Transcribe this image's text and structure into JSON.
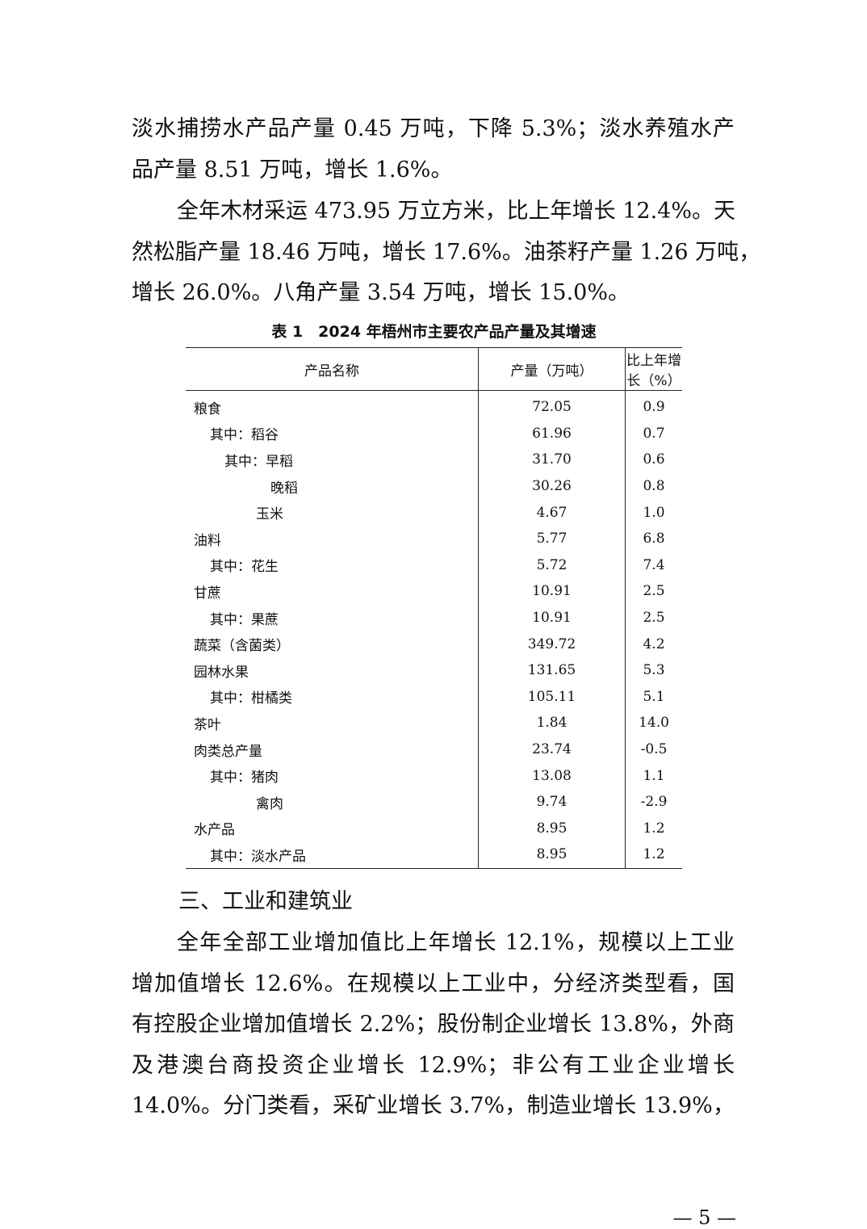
{
  "paragraphs_top": [
    {
      "lines": [
        "淡水捕捞水产品产量 0.45 万吨，下降 5.3%；淡水养殖水产",
        "品产量 8.51 万吨，增长 1.6%。"
      ],
      "indent_first": false
    },
    {
      "lines": [
        "全年木材采运 473.95 万立方米，比上年增长 12.4%。天",
        "然松脂产量 18.46 万吨，增长 17.6%。油茶籽产量 1.26 万吨，",
        "增长 26.0%。八角产量 3.54 万吨，增长 15.0%。"
      ],
      "indent_first": true
    }
  ],
  "table": {
    "caption": "表 1　2024 年梧州市主要农产品产量及其增速",
    "headers": [
      "产品名称",
      "产量（万吨）",
      "比上年增长（%）"
    ],
    "rows": [
      {
        "name": "粮食",
        "level": "0",
        "output": "72.05",
        "growth": "0.9"
      },
      {
        "name": "其中：稻谷",
        "level": "1",
        "output": "61.96",
        "growth": "0.7"
      },
      {
        "name": "其中：早稻",
        "level": "2",
        "output": "31.70",
        "growth": "0.6"
      },
      {
        "name": "晚稻",
        "level": "2b",
        "output": "30.26",
        "growth": "0.8"
      },
      {
        "name": "玉米",
        "level": "1b",
        "output": "4.67",
        "growth": "1.0"
      },
      {
        "name": "油料",
        "level": "0",
        "output": "5.77",
        "growth": "6.8"
      },
      {
        "name": "其中：花生",
        "level": "1",
        "output": "5.72",
        "growth": "7.4"
      },
      {
        "name": "甘蔗",
        "level": "0",
        "output": "10.91",
        "growth": "2.5"
      },
      {
        "name": "其中：果蔗",
        "level": "1",
        "output": "10.91",
        "growth": "2.5"
      },
      {
        "name": "蔬菜（含菌类）",
        "level": "0",
        "output": "349.72",
        "growth": "4.2"
      },
      {
        "name": "园林水果",
        "level": "0",
        "output": "131.65",
        "growth": "5.3"
      },
      {
        "name": "其中：柑橘类",
        "level": "1",
        "output": "105.11",
        "growth": "5.1"
      },
      {
        "name": "茶叶",
        "level": "0",
        "output": "1.84",
        "growth": "14.0"
      },
      {
        "name": "肉类总产量",
        "level": "0",
        "output": "23.74",
        "growth": "-0.5"
      },
      {
        "name": "其中：猪肉",
        "level": "1",
        "output": "13.08",
        "growth": "1.1"
      },
      {
        "name": "禽肉",
        "level": "1b",
        "output": "9.74",
        "growth": "-2.9"
      },
      {
        "name": "水产品",
        "level": "0",
        "output": "8.95",
        "growth": "1.2"
      },
      {
        "name": "其中：淡水产品",
        "level": "1",
        "output": "8.95",
        "growth": "1.2"
      }
    ]
  },
  "section_heading": "三、工业和建筑业",
  "paragraph_bottom": {
    "lines": [
      "全年全部工业增加值比上年增长 12.1%，规模以上工业",
      "增加值增长 12.6%。在规模以上工业中，分经济类型看，国",
      "有控股企业增加值增长 2.2%；股份制企业增长 13.8%，外商",
      "及港澳台商投资企业增长 12.9%；非公有工业企业增长",
      "14.0%。分门类看，采矿业增长 3.7%，制造业增长 13.9%，"
    ],
    "continues": true
  },
  "page_number": "— 5 —"
}
